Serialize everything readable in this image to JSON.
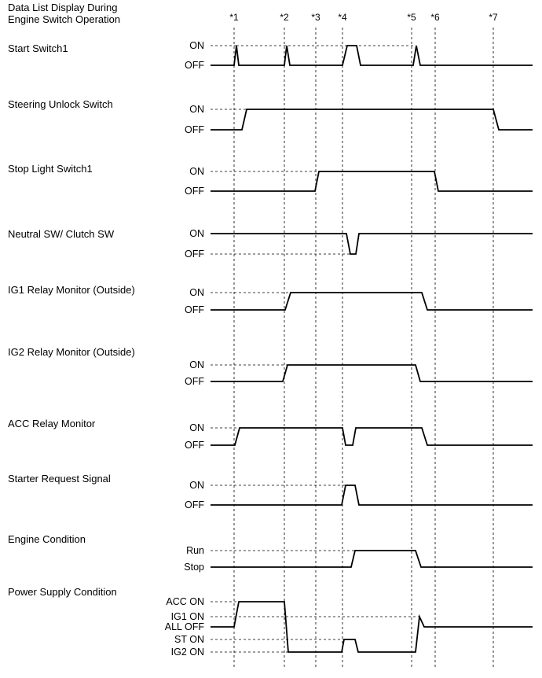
{
  "title": [
    "Data List Display During",
    "Engine Switch Operation"
  ],
  "markers": [
    "*1",
    "*2",
    "*3",
    "*4",
    "*5",
    "*6",
    "*7"
  ],
  "signals": [
    {
      "name": "Start Switch1",
      "levels": [
        "ON",
        "OFF"
      ],
      "waveform": [
        [
          "start",
          "OFF"
        ],
        [
          298,
          "OFF"
        ],
        [
          301,
          "ON"
        ],
        [
          304,
          "OFF"
        ],
        [
          362,
          "OFF"
        ],
        [
          365,
          "ON"
        ],
        [
          369,
          "OFF"
        ],
        [
          436,
          "OFF"
        ],
        [
          442,
          "ON"
        ],
        [
          454,
          "ON"
        ],
        [
          459,
          "OFF"
        ],
        [
          526,
          "OFF"
        ],
        [
          530,
          "ON"
        ],
        [
          535,
          "OFF"
        ],
        [
          "end",
          "OFF"
        ]
      ]
    },
    {
      "name": "Steering Unlock Switch",
      "levels": [
        "ON",
        "OFF"
      ],
      "waveform": [
        [
          "start",
          "OFF"
        ],
        [
          308,
          "OFF"
        ],
        [
          314,
          "ON"
        ],
        [
          628,
          "ON"
        ],
        [
          635,
          "OFF"
        ],
        [
          "end",
          "OFF"
        ]
      ]
    },
    {
      "name": "Stop Light Switch1",
      "levels": [
        "ON",
        "OFF"
      ],
      "waveform": [
        [
          "start",
          "OFF"
        ],
        [
          401,
          "OFF"
        ],
        [
          406,
          "ON"
        ],
        [
          553,
          "ON"
        ],
        [
          558,
          "OFF"
        ],
        [
          "end",
          "OFF"
        ]
      ]
    },
    {
      "name": "Neutral SW/ Clutch SW",
      "levels": [
        "ON",
        "OFF"
      ],
      "waveform": [
        [
          "start",
          "ON"
        ],
        [
          441,
          "ON"
        ],
        [
          446,
          "OFF"
        ],
        [
          453,
          "OFF"
        ],
        [
          457,
          "ON"
        ],
        [
          "end",
          "ON"
        ]
      ]
    },
    {
      "name": "IG1 Relay Monitor (Outside)",
      "levels": [
        "ON",
        "OFF"
      ],
      "waveform": [
        [
          "start",
          "OFF"
        ],
        [
          363,
          "OFF"
        ],
        [
          370,
          "ON"
        ],
        [
          537,
          "ON"
        ],
        [
          544,
          "OFF"
        ],
        [
          "end",
          "OFF"
        ]
      ]
    },
    {
      "name": "IG2 Relay Monitor (Outside)",
      "levels": [
        "ON",
        "OFF"
      ],
      "waveform": [
        [
          "start",
          "OFF"
        ],
        [
          360,
          "OFF"
        ],
        [
          366,
          "ON"
        ],
        [
          529,
          "ON"
        ],
        [
          535,
          "OFF"
        ],
        [
          "end",
          "OFF"
        ]
      ]
    },
    {
      "name": "ACC Relay Monitor",
      "levels": [
        "ON",
        "OFF"
      ],
      "waveform": [
        [
          "start",
          "OFF"
        ],
        [
          299,
          "OFF"
        ],
        [
          305,
          "ON"
        ],
        [
          436,
          "ON"
        ],
        [
          440,
          "OFF"
        ],
        [
          449,
          "OFF"
        ],
        [
          453,
          "ON"
        ],
        [
          537,
          "ON"
        ],
        [
          544,
          "OFF"
        ],
        [
          "end",
          "OFF"
        ]
      ]
    },
    {
      "name": "Starter Request Signal",
      "levels": [
        "ON",
        "OFF"
      ],
      "waveform": [
        [
          "start",
          "OFF"
        ],
        [
          435,
          "OFF"
        ],
        [
          440,
          "ON"
        ],
        [
          452,
          "ON"
        ],
        [
          457,
          "OFF"
        ],
        [
          "end",
          "OFF"
        ]
      ]
    },
    {
      "name": "Engine Condition",
      "levels": [
        "Run",
        "Stop"
      ],
      "waveform": [
        [
          "start",
          "Stop"
        ],
        [
          447,
          "Stop"
        ],
        [
          452,
          "Run"
        ],
        [
          529,
          "Run"
        ],
        [
          536,
          "Stop"
        ],
        [
          "end",
          "Stop"
        ]
      ]
    },
    {
      "name": "Power Supply Condition",
      "levels": [
        "ACC ON",
        "IG1 ON",
        "ALL OFF",
        "ST ON",
        "IG2 ON"
      ],
      "waveform": [
        [
          "start",
          "ALL OFF"
        ],
        [
          298,
          "ALL OFF"
        ],
        [
          304,
          "ACC ON"
        ],
        [
          362,
          "ACC ON"
        ],
        [
          367,
          "IG2 ON"
        ],
        [
          435,
          "IG2 ON"
        ],
        [
          438,
          "ST ON"
        ],
        [
          452,
          "ST ON"
        ],
        [
          456,
          "IG2 ON"
        ],
        [
          529,
          "IG2 ON"
        ],
        [
          534,
          "IG1 ON"
        ],
        [
          540,
          "ALL OFF"
        ],
        [
          "end",
          "ALL OFF"
        ]
      ]
    }
  ]
}
